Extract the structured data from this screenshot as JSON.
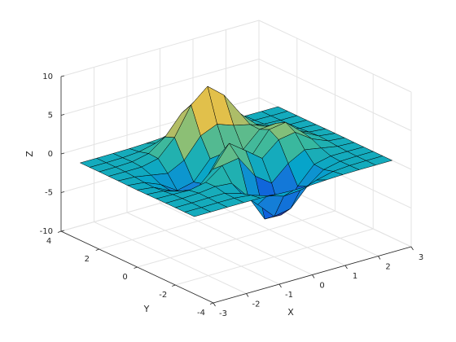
{
  "chart_data": {
    "type": "surface",
    "xlabel": "X",
    "ylabel": "Y",
    "zlabel": "Z",
    "x": [
      -3,
      -2.5,
      -2,
      -1.5,
      -1,
      -0.5,
      0,
      0.5,
      1,
      1.5,
      2,
      2.5,
      3
    ],
    "y": [
      -3,
      -2.5,
      -2,
      -1.5,
      -1,
      -0.5,
      0,
      0.5,
      1,
      1.5,
      2,
      2.5,
      3
    ],
    "z": [
      [
        0,
        0,
        0,
        0,
        -0.03,
        -0.14,
        -0.24,
        -0.22,
        -0.11,
        -0.03,
        0,
        0,
        0
      ],
      [
        0,
        0,
        0.01,
        0,
        -0.23,
        -0.92,
        -1.57,
        -1.41,
        -0.69,
        -0.18,
        -0.03,
        0,
        0
      ],
      [
        0,
        0.01,
        0.05,
        0.05,
        -0.59,
        -2.64,
        -4.76,
        -4.35,
        -2.1,
        -0.53,
        -0.06,
        0,
        0
      ],
      [
        0,
        0.01,
        0.08,
        0.33,
        0.15,
        -2.19,
        -5.68,
        -5.76,
        -2.64,
        -0.44,
        0.04,
        0.03,
        0
      ],
      [
        -0.01,
        -0.06,
        -0.13,
        0.3,
        1.86,
        2.22,
        -0.72,
        -2.22,
        -0.27,
        0.88,
        0.5,
        0.11,
        0.01
      ],
      [
        -0.03,
        -0.2,
        -0.8,
        -1.21,
        0.8,
        3.55,
        2,
        0.39,
        2.2,
        2.56,
        1.12,
        0.24,
        0.03
      ],
      [
        -0.04,
        -0.3,
        -1.33,
        -2.77,
        -1.65,
        1.48,
        0.98,
        0.37,
        2.94,
        3.27,
        1.41,
        0.3,
        0.03
      ],
      [
        -0.03,
        -0.25,
        -1.12,
        -2.49,
        -2,
        0.39,
        0.46,
        0.38,
        2.38,
        2.56,
        1.09,
        0.23,
        0.03
      ],
      [
        -0.01,
        -0.11,
        -0.48,
        -0.86,
        0.23,
        2.79,
        3.69,
        2.93,
        2.43,
        1.58,
        0.58,
        0.11,
        0.01
      ],
      [
        0,
        -0.02,
        -0.01,
        0.48,
        2.61,
        6.2,
        8,
        6.25,
        3.25,
        1.19,
        0.29,
        0.05,
        0
      ],
      [
        0,
        0.01,
        0.08,
        0.55,
        2.1,
        4.56,
        5.86,
        4.57,
        2.21,
        0.68,
        0.13,
        0.02,
        0
      ],
      [
        0,
        0,
        0.03,
        0.19,
        0.69,
        1.47,
        1.88,
        1.47,
        0.7,
        0.21,
        0.04,
        0,
        0
      ],
      [
        0,
        0,
        0.01,
        0.03,
        0.11,
        0.23,
        0.3,
        0.23,
        0.11,
        0.03,
        0.01,
        0,
        0
      ]
    ],
    "xlim": [
      -3,
      3
    ],
    "ylim": [
      -4,
      4
    ],
    "zlim": [
      -10,
      10
    ],
    "xticks": [
      -3,
      -2,
      -1,
      0,
      1,
      2,
      3
    ],
    "yticks": [
      -4,
      -2,
      0,
      2,
      4
    ],
    "zticks": [
      -10,
      -5,
      0,
      5,
      10
    ],
    "grid": true,
    "colormap": "parula",
    "edge_color": "#000000"
  }
}
